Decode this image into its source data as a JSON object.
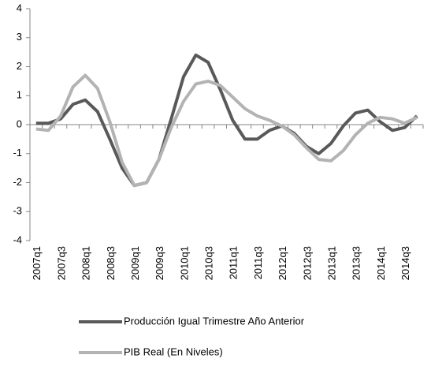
{
  "chart_data": {
    "type": "line",
    "categories": [
      "2007q1",
      null,
      "2007q3",
      null,
      "2008q1",
      null,
      "2008q3",
      null,
      "2009q1",
      null,
      "2009q3",
      null,
      "2010q1",
      null,
      "2010q3",
      null,
      "2011q1",
      null,
      "2011q3",
      null,
      "2012q1",
      null,
      "2012q3",
      null,
      "2013q1",
      null,
      "2013q3",
      null,
      "2014q1",
      null,
      "2014q3",
      null
    ],
    "series": [
      {
        "name": "Producción Igual Trimestre Año Anterior",
        "color": "#595959",
        "values": [
          0.05,
          0.05,
          0.2,
          0.7,
          0.85,
          0.45,
          -0.5,
          -1.5,
          -2.1,
          -2.0,
          -1.2,
          0.2,
          1.65,
          2.4,
          2.15,
          1.2,
          0.15,
          -0.5,
          -0.5,
          -0.2,
          -0.05,
          -0.3,
          -0.75,
          -1.0,
          -0.65,
          -0.05,
          0.4,
          0.5,
          0.1,
          -0.2,
          -0.1,
          0.3
        ]
      },
      {
        "name": "PIB Real (En Niveles)",
        "color": "#b3b3b3",
        "values": [
          -0.15,
          -0.2,
          0.3,
          1.3,
          1.7,
          1.25,
          0.1,
          -1.3,
          -2.1,
          -2.0,
          -1.2,
          -0.1,
          0.8,
          1.4,
          1.5,
          1.35,
          0.95,
          0.55,
          0.3,
          0.15,
          -0.05,
          -0.35,
          -0.8,
          -1.2,
          -1.25,
          -0.9,
          -0.35,
          0.05,
          0.25,
          0.2,
          0.05,
          0.25
        ]
      }
    ],
    "ylim": [
      -4,
      4
    ],
    "yticks": [
      -4,
      -3,
      -2,
      -1,
      0,
      1,
      2,
      3,
      4
    ]
  }
}
